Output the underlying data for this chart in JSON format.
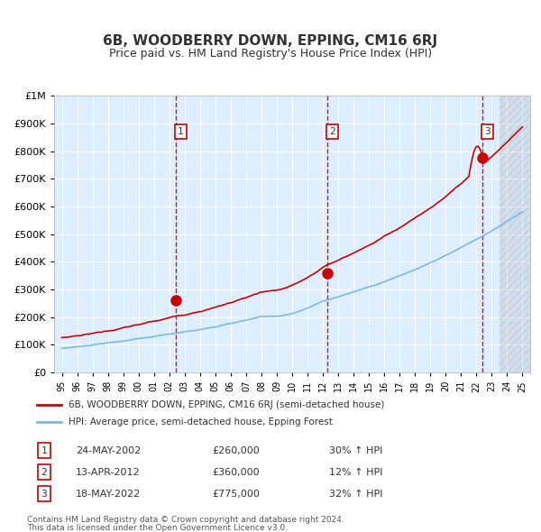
{
  "title": "6B, WOODBERRY DOWN, EPPING, CM16 6RJ",
  "subtitle": "Price paid vs. HM Land Registry's House Price Index (HPI)",
  "x_start_year": 1995,
  "x_end_year": 2025,
  "y_min": 0,
  "y_max": 1000000,
  "y_ticks": [
    0,
    100000,
    200000,
    300000,
    400000,
    500000,
    600000,
    700000,
    800000,
    900000,
    1000000
  ],
  "y_tick_labels": [
    "£0",
    "£100K",
    "£200K",
    "£300K",
    "£400K",
    "£500K",
    "£600K",
    "£700K",
    "£800K",
    "£900K",
    "£1M"
  ],
  "hpi_color": "#7eb8e8",
  "price_color": "#cc0000",
  "sale_dot_color": "#cc0000",
  "sale_marker_color": "#cc0000",
  "dashed_line_color": "#cc0000",
  "background_color": "#ddeeff",
  "hatch_color": "#aaaacc",
  "grid_color": "#ffffff",
  "sale1_date": "24-MAY-2002",
  "sale1_year": 2002.4,
  "sale1_price": 260000,
  "sale1_label": "1",
  "sale1_pct": "30% ↑ HPI",
  "sale2_date": "13-APR-2012",
  "sale2_year": 2012.28,
  "sale2_price": 360000,
  "sale2_label": "2",
  "sale2_pct": "12% ↑ HPI",
  "sale3_date": "18-MAY-2022",
  "sale3_year": 2022.38,
  "sale3_price": 775000,
  "sale3_label": "3",
  "sale3_pct": "32% ↑ HPI",
  "legend_label_price": "6B, WOODBERRY DOWN, EPPING, CM16 6RJ (semi-detached house)",
  "legend_label_hpi": "HPI: Average price, semi-detached house, Epping Forest",
  "footnote1": "Contains HM Land Registry data © Crown copyright and database right 2024.",
  "footnote2": "This data is licensed under the Open Government Licence v3.0."
}
